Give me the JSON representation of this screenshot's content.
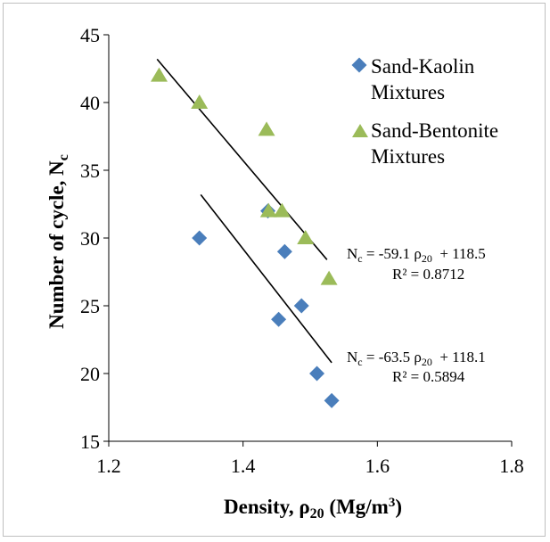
{
  "chart_data": {
    "type": "scatter",
    "xlim": [
      1.2,
      1.8
    ],
    "ylim": [
      15,
      45
    ],
    "x_ticks": [
      "1.2",
      "1.4",
      "1.6",
      "1.8"
    ],
    "y_ticks": [
      "15",
      "20",
      "25",
      "30",
      "35",
      "40",
      "45"
    ],
    "xlabel": {
      "prefix": "Density, ρ",
      "sub": "20",
      "suffix": " (Mg/m",
      "sup": "3",
      "end": ")"
    },
    "ylabel": {
      "main": "Number of cycle, N",
      "sub": "c"
    },
    "grid": false,
    "legend_position": "top-right",
    "series": [
      {
        "name_lines": [
          "Sand-Kaolin",
          "Mixtures"
        ],
        "marker": "diamond",
        "color": "#4a7ebb",
        "points": [
          [
            1.335,
            30
          ],
          [
            1.437,
            32
          ],
          [
            1.462,
            29
          ],
          [
            1.453,
            24
          ],
          [
            1.487,
            25
          ],
          [
            1.51,
            20
          ],
          [
            1.532,
            18
          ]
        ]
      },
      {
        "name_lines": [
          "Sand-Bentonite",
          "Mixtures"
        ],
        "marker": "triangle",
        "color": "#9bbb59",
        "points": [
          [
            1.275,
            42
          ],
          [
            1.335,
            40
          ],
          [
            1.435,
            38
          ],
          [
            1.438,
            32
          ],
          [
            1.458,
            32
          ],
          [
            1.493,
            30
          ],
          [
            1.528,
            27
          ]
        ]
      }
    ],
    "trendlines": [
      {
        "x": [
          1.272,
          1.525
        ],
        "y": [
          43.2,
          28.4
        ],
        "color": "#000000"
      },
      {
        "x": [
          1.337,
          1.532
        ],
        "y": [
          33.2,
          20.8
        ],
        "color": "#000000"
      }
    ],
    "equations": [
      {
        "n": "N",
        "nsub": "c",
        "rest1": " = -59.1 ρ",
        "rsub": "20",
        "rest2": "  + 118.5",
        "r2": "R² = 0.8712"
      },
      {
        "n": "N",
        "nsub": "c",
        "rest1": " = -63.5 ρ",
        "rsub": "20",
        "rest2": "  + 118.1",
        "r2": "R² = 0.5894"
      }
    ]
  }
}
